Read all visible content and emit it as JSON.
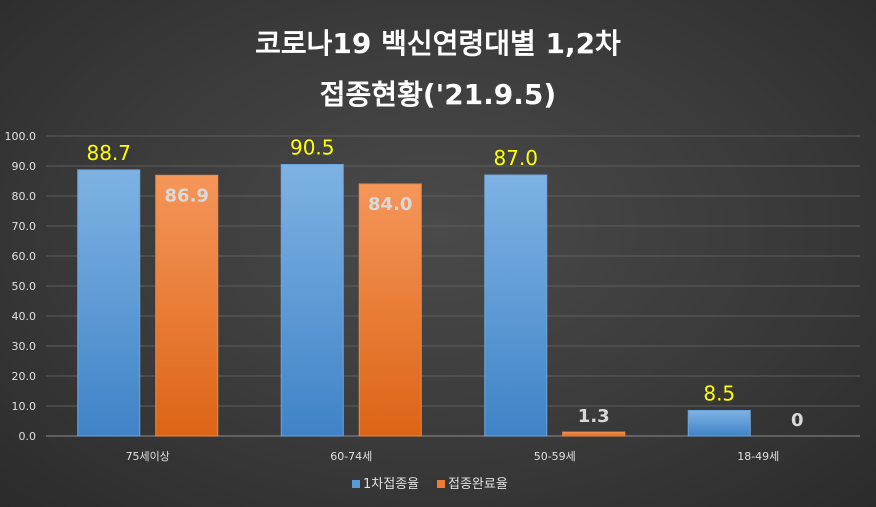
{
  "chart_data": {
    "type": "bar",
    "title_line1": "코로나19 백신연령대별 1,2차",
    "title_line2": "접종현황('21.9.5)",
    "categories": [
      "75세이상",
      "60-74세",
      "50-59세",
      "18-49세"
    ],
    "series": [
      {
        "name": "1차접종율",
        "values": [
          88.7,
          90.5,
          87.0,
          8.5
        ],
        "labels": [
          "88.7",
          "90.5",
          "87.0",
          "8.5"
        ],
        "color": "#5b9bd5",
        "label_color": "#ffff00"
      },
      {
        "name": "접종완료율",
        "values": [
          86.9,
          84.0,
          1.3,
          0
        ],
        "labels": [
          "86.9",
          "84.0",
          "1.3",
          "0"
        ],
        "color": "#ed7d31",
        "label_color": "#d9d9d9"
      }
    ],
    "yticks": [
      "0.0",
      "10.0",
      "20.0",
      "30.0",
      "40.0",
      "50.0",
      "60.0",
      "70.0",
      "80.0",
      "90.0",
      "100.0"
    ],
    "ylim": [
      0,
      100
    ],
    "grid": true,
    "legend_position": "bottom"
  }
}
